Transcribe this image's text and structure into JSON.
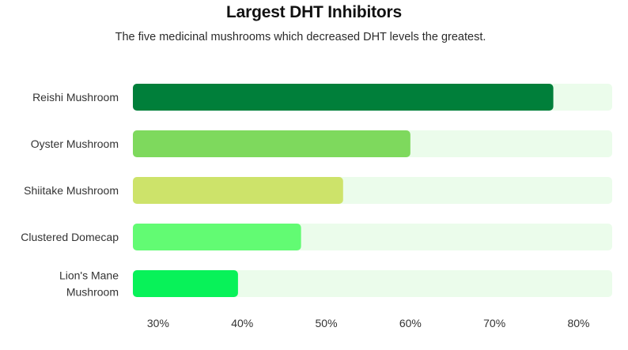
{
  "chart_data": {
    "type": "bar",
    "orientation": "horizontal",
    "title": "Largest DHT Inhibitors",
    "subtitle": "The five medicinal mushrooms which decreased DHT levels the greatest.",
    "categories": [
      [
        "Reishi Mushroom"
      ],
      [
        "Oyster Mushroom"
      ],
      [
        "Shiitake Mushroom"
      ],
      [
        "Clustered Domecap"
      ],
      [
        "Lion's Mane",
        "Mushroom"
      ]
    ],
    "values": [
      77,
      60,
      52,
      47,
      39.5
    ],
    "bar_colors": [
      "#007f3a",
      "#7ed95d",
      "#cde36a",
      "#62fb73",
      "#08f259"
    ],
    "track_color": "#ebfceb",
    "xlim": [
      27,
      84
    ],
    "xticks": [
      30,
      40,
      50,
      60,
      70,
      80
    ],
    "xtick_labels": [
      "30%",
      "40%",
      "50%",
      "60%",
      "70%",
      "80%"
    ],
    "xlabel": "",
    "ylabel": "",
    "grid": false,
    "legend": "none"
  }
}
